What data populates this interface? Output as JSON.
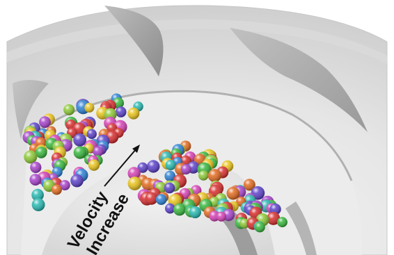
{
  "annotation": {
    "line1": "Velocity",
    "line2": "Increase"
  },
  "colors": {
    "background": "#ffffff",
    "housing_light": "#e9e9e9",
    "housing_mid": "#d2d2d2",
    "housing_shadow": "#9a9a9a",
    "arrow": "#111111",
    "ball_palette": [
      "#d62b2b",
      "#e0681e",
      "#e8c21a",
      "#36b53b",
      "#25b7b0",
      "#2a7fd4",
      "#5a3fc8",
      "#a540c9",
      "#d43fb4",
      "#8bc834"
    ]
  },
  "icons": [
    "curved-arrow-icon",
    "particle-ball-icon"
  ]
}
